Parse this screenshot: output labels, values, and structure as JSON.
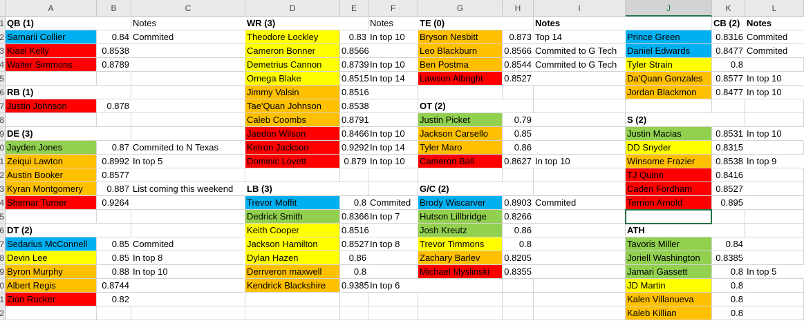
{
  "columns": [
    "A",
    "B",
    "C",
    "D",
    "E",
    "F",
    "G",
    "H",
    "I",
    "J",
    "K",
    "L"
  ],
  "row_numbers": [
    1,
    2,
    3,
    4,
    5,
    6,
    7,
    8,
    9,
    10,
    11,
    12,
    13,
    14,
    15,
    16,
    17,
    18,
    19,
    20,
    21,
    22
  ],
  "rows": [
    [
      "QB (1)",
      null,
      "Notes",
      "WR (3)",
      null,
      "Notes",
      "TE (0)",
      null,
      "Notes",
      null,
      "CB (2)",
      "Notes"
    ],
    [
      "Samarii Collier",
      0.84,
      "Commited",
      "Theodore Lockley",
      0.83,
      "In top 10",
      "Bryson Nesbitt",
      0.873,
      "Top 14",
      "Prince Green",
      0.8316,
      "Commited"
    ],
    [
      "Kiael Kelly",
      0.8538,
      null,
      "Cameron Bonner",
      0.8566,
      null,
      "Leo Blackburn",
      0.8566,
      "Commited to G Tech",
      "Daniel Edwards",
      0.8477,
      "Commited"
    ],
    [
      "Walter Simmons",
      0.8789,
      null,
      "Demetrius Cannon",
      0.8739,
      "In top 10",
      "Ben Postma",
      0.8544,
      "Commited to G Tech",
      "Tyler Strain",
      0.8,
      null
    ],
    [
      null,
      null,
      null,
      "Omega Blake",
      0.8515,
      "In top 14",
      "Lawson Albright",
      0.8527,
      null,
      "Da'Quan Gonzales",
      0.8577,
      "In top 10"
    ],
    [
      "RB (1)",
      null,
      null,
      "Jimmy Valsin",
      0.8516,
      null,
      null,
      null,
      null,
      "Jordan Blackmon",
      0.8477,
      "In top 10"
    ],
    [
      "Justin Johnson",
      0.878,
      null,
      "Tae'Quan Johnson",
      0.8538,
      null,
      "OT (2)",
      null,
      null,
      null,
      null,
      null
    ],
    [
      null,
      null,
      null,
      "Caleb Coombs",
      0.8791,
      null,
      "Justin Picket",
      0.79,
      null,
      "S (2)",
      null,
      null
    ],
    [
      "DE (3)",
      null,
      null,
      "Jaedon Wilson",
      0.8466,
      "In top 10",
      "Jackson Carsello",
      0.85,
      null,
      "Justin Macias",
      0.8531,
      "In top 10"
    ],
    [
      "Jayden Jones",
      0.87,
      "Commited to N Texas",
      "Ketron Jackson",
      0.9292,
      "In top 14",
      "Tyler Maro",
      0.86,
      null,
      "DD Snyder",
      0.8315,
      null
    ],
    [
      "Zeiqui Lawton",
      0.8992,
      "In top 5",
      "Dominic Lovett",
      0.879,
      "In top 10",
      "Cameron Ball",
      0.8627,
      "In top 10",
      "Winsome Frazier",
      0.8538,
      "In top 9"
    ],
    [
      "Austin Booker",
      0.8577,
      null,
      null,
      null,
      null,
      null,
      null,
      null,
      "TJ Quinn",
      0.8416,
      null
    ],
    [
      "Kyran Montgomery",
      0.887,
      "List coming this weekend",
      "LB (3)",
      null,
      null,
      "G/C (2)",
      null,
      null,
      "Caden Fordham",
      0.8527,
      null
    ],
    [
      "Shemar Turner",
      0.9264,
      null,
      "Trevor Moffit",
      0.8,
      "Commited",
      "Brody Wiscarver",
      0.8903,
      "Commited",
      "Terrion Arnold",
      0.895,
      null
    ],
    [
      null,
      null,
      null,
      "Dedrick Smith",
      0.8366,
      "In top 7",
      "Hutson Lillbridge",
      0.8266,
      null,
      null,
      null,
      null
    ],
    [
      "DT (2)",
      null,
      null,
      "Keith Cooper",
      0.8516,
      null,
      "Josh Kreutz",
      0.86,
      null,
      "ATH",
      null,
      null
    ],
    [
      "Sedarius McConnell",
      0.85,
      "Commited",
      "Jackson Hamilton",
      0.8527,
      "In top 8",
      "Trevor Timmons",
      0.8,
      null,
      "Tavoris Miller",
      0.84,
      null
    ],
    [
      "Devin Lee",
      0.85,
      "In top 8",
      "Dylan Hazen",
      0.86,
      null,
      "Zachary Barlev",
      0.8205,
      null,
      "Joriell Washington",
      0.8385,
      null
    ],
    [
      "Byron Murphy",
      0.88,
      "In top 10",
      "Derrveron maxwell",
      0.8,
      null,
      "Michael Myslinski",
      0.8355,
      null,
      "Jamari Gassett",
      0.8,
      "In top 5"
    ],
    [
      "Albert Regis",
      0.8744,
      null,
      "Kendrick Blackshire",
      0.9385,
      "In top 6",
      null,
      null,
      null,
      "JD Martin",
      0.8,
      null
    ],
    [
      "Zion Rucker",
      0.82,
      null,
      null,
      null,
      null,
      null,
      null,
      null,
      "Kalen Villanueva",
      0.8,
      null
    ],
    [
      null,
      null,
      null,
      null,
      null,
      null,
      null,
      null,
      null,
      "Kaleb Killian",
      0.8,
      null
    ]
  ],
  "fills": [
    [
      null,
      null,
      null,
      null,
      null,
      null,
      null,
      null,
      null,
      null,
      null,
      null
    ],
    [
      "#00b0f0",
      null,
      null,
      "#ffff00",
      null,
      null,
      "#ffc000",
      null,
      null,
      "#00b0f0",
      null,
      null
    ],
    [
      "#ff0000",
      null,
      null,
      "#ffff00",
      null,
      null,
      "#ffc000",
      null,
      null,
      "#00b0f0",
      null,
      null
    ],
    [
      "#ff0000",
      null,
      null,
      "#ffff00",
      null,
      null,
      "#ffc000",
      null,
      null,
      "#ffff00",
      null,
      null
    ],
    [
      null,
      null,
      null,
      "#ffff00",
      null,
      null,
      "#ff0000",
      null,
      null,
      "#ffc000",
      null,
      null
    ],
    [
      null,
      null,
      null,
      "#ffc000",
      null,
      null,
      null,
      null,
      null,
      "#ffc000",
      null,
      null
    ],
    [
      "#ff0000",
      null,
      null,
      "#ffc000",
      null,
      null,
      null,
      null,
      null,
      null,
      null,
      null
    ],
    [
      null,
      null,
      null,
      "#ffc000",
      null,
      null,
      "#92d050",
      null,
      null,
      null,
      null,
      null
    ],
    [
      null,
      null,
      null,
      "#ff0000",
      null,
      null,
      "#ffc000",
      null,
      null,
      "#92d050",
      null,
      null
    ],
    [
      "#92d050",
      null,
      null,
      "#ff0000",
      null,
      null,
      "#ffc000",
      null,
      null,
      "#ffff00",
      null,
      null
    ],
    [
      "#ffc000",
      null,
      null,
      "#ff0000",
      null,
      null,
      "#ff0000",
      null,
      null,
      "#ffc000",
      null,
      null
    ],
    [
      "#ffc000",
      null,
      null,
      null,
      null,
      null,
      null,
      null,
      null,
      "#ff0000",
      null,
      null
    ],
    [
      "#ffc000",
      null,
      null,
      null,
      null,
      null,
      null,
      null,
      null,
      "#ff0000",
      null,
      null
    ],
    [
      "#ff0000",
      null,
      null,
      "#00b0f0",
      null,
      null,
      "#00b0f0",
      null,
      null,
      "#ff0000",
      null,
      null
    ],
    [
      null,
      null,
      null,
      "#92d050",
      null,
      null,
      "#92d050",
      null,
      null,
      null,
      null,
      null
    ],
    [
      null,
      null,
      null,
      "#ffff00",
      null,
      null,
      "#92d050",
      null,
      null,
      null,
      null,
      null
    ],
    [
      "#00b0f0",
      null,
      null,
      "#ffff00",
      null,
      null,
      "#ffff00",
      null,
      null,
      "#92d050",
      null,
      null
    ],
    [
      "#ffff00",
      null,
      null,
      "#ffff00",
      null,
      null,
      "#ffc000",
      null,
      null,
      "#92d050",
      null,
      null
    ],
    [
      "#ffc000",
      null,
      null,
      "#ffc000",
      null,
      null,
      "#ff0000",
      null,
      null,
      "#92d050",
      null,
      null
    ],
    [
      "#ffc000",
      null,
      null,
      "#ffc000",
      null,
      null,
      null,
      null,
      null,
      "#ffff00",
      null,
      null
    ],
    [
      "#ff0000",
      null,
      null,
      null,
      null,
      null,
      null,
      null,
      null,
      "#ffc000",
      null,
      null
    ],
    [
      null,
      null,
      null,
      null,
      null,
      null,
      null,
      null,
      null,
      "#ffc000",
      null,
      null
    ]
  ],
  "bold": [
    [
      0,
      0
    ],
    [
      0,
      3
    ],
    [
      0,
      6
    ],
    [
      0,
      8
    ],
    [
      0,
      10
    ],
    [
      0,
      11
    ],
    [
      5,
      0
    ],
    [
      6,
      6
    ],
    [
      7,
      9
    ],
    [
      8,
      0
    ],
    [
      12,
      3
    ],
    [
      12,
      6
    ],
    [
      15,
      0
    ],
    [
      15,
      9
    ]
  ],
  "selected": [
    14,
    9
  ]
}
